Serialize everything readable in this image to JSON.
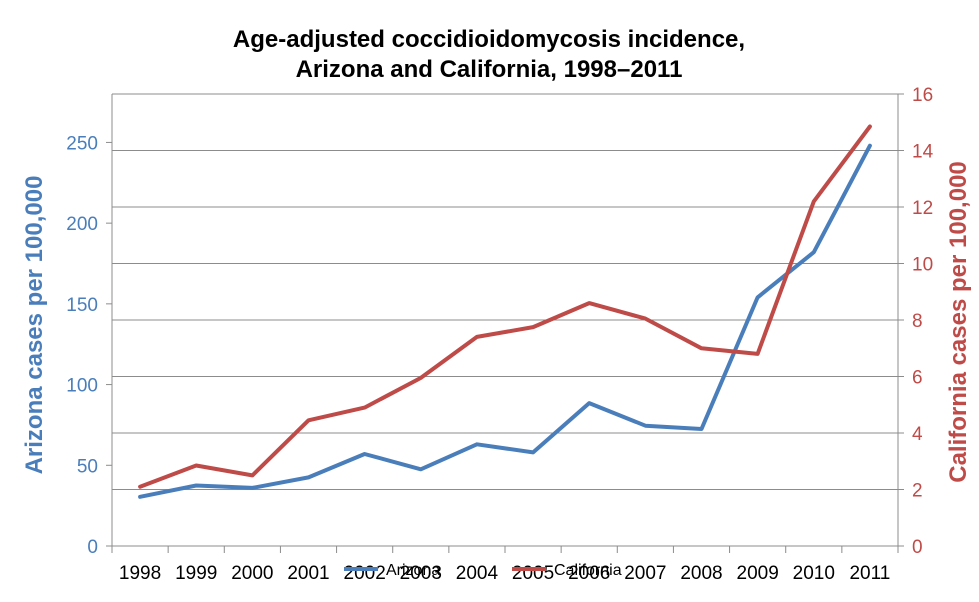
{
  "chart_data": {
    "type": "line",
    "title_lines": [
      "Age-adjusted coccidioidomycosis incidence,",
      "Arizona and California, 1998–2011"
    ],
    "categories": [
      "1998",
      "1999",
      "2000",
      "2001",
      "2002",
      "2003",
      "2004",
      "2005",
      "2006",
      "2007",
      "2008",
      "2009",
      "2010",
      "2011"
    ],
    "y_left": {
      "label": "Arizona cases per 100,000",
      "range": [
        0,
        280
      ],
      "ticks": [
        0,
        50,
        100,
        150,
        200,
        250
      ],
      "color": "#4a7ebb"
    },
    "y_right": {
      "label": "California cases per 100,000",
      "range": [
        0,
        16
      ],
      "ticks": [
        0,
        2,
        4,
        6,
        8,
        10,
        12,
        14,
        16
      ],
      "color": "#be4b48"
    },
    "grid": true,
    "legend_position": "bottom",
    "series": [
      {
        "name": "Arizona",
        "axis": "left",
        "color": "#4a7ebb",
        "values": [
          30.5,
          37.5,
          36,
          42.5,
          57,
          47.5,
          63,
          58,
          88.5,
          74.5,
          72.5,
          154,
          182,
          248
        ]
      },
      {
        "name": "California",
        "axis": "right",
        "color": "#be4b48",
        "values": [
          2.1,
          2.85,
          2.5,
          4.45,
          4.9,
          5.95,
          7.4,
          7.75,
          8.6,
          8.05,
          7.0,
          6.8,
          12.2,
          14.85
        ]
      }
    ]
  }
}
